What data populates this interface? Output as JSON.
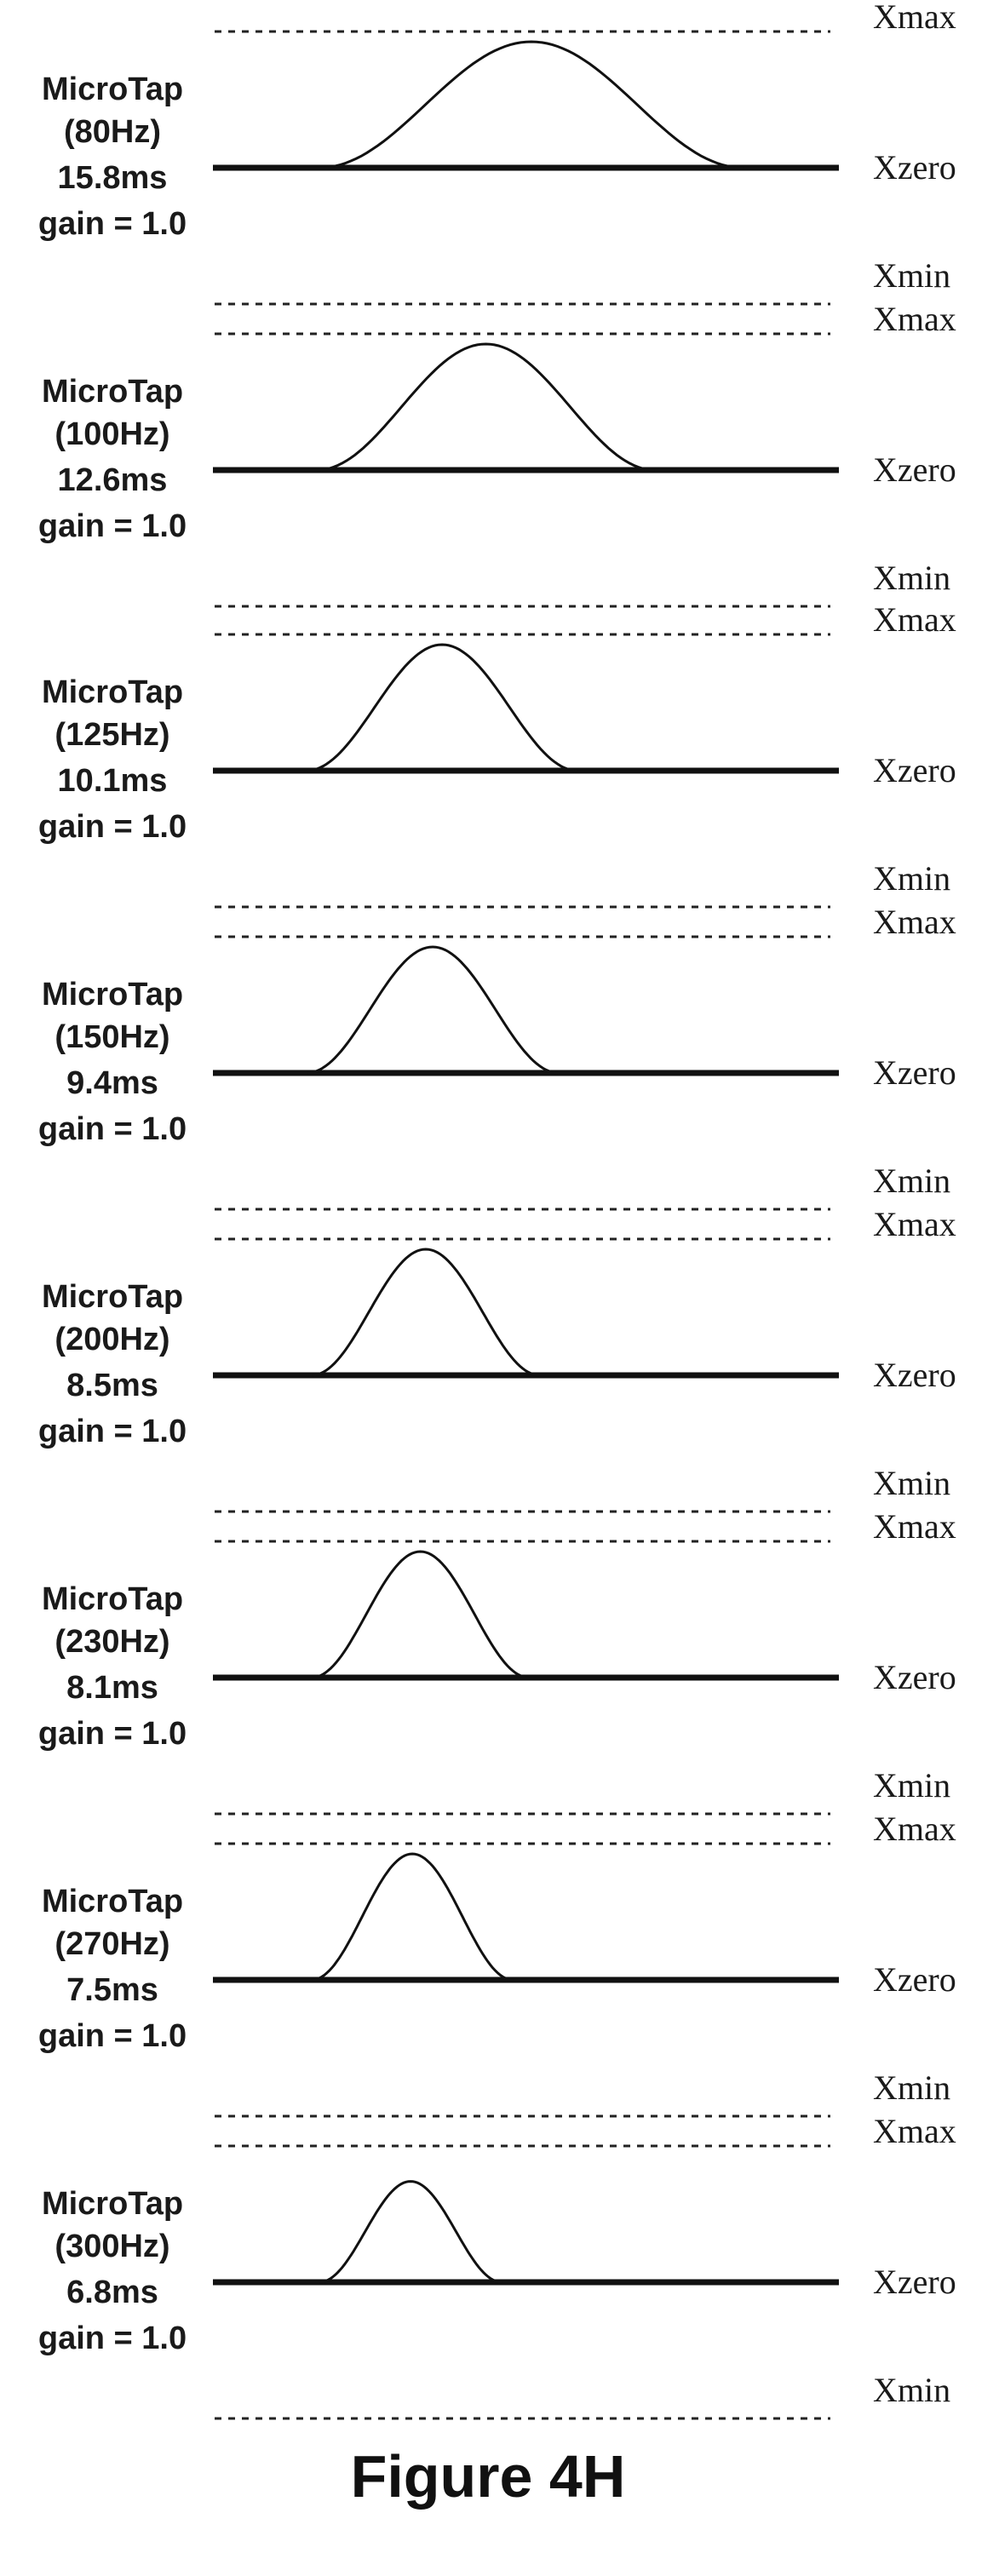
{
  "chart_data": {
    "type": "diagram",
    "caption": "Figure 4H",
    "level_labels": {
      "max": "Xmax",
      "zero": "Xzero",
      "min": "Xmin"
    },
    "taps": [
      {
        "name": "MicroTap",
        "frequency": "(80Hz)",
        "duration": "15.8ms",
        "gain": "gain = 1.0",
        "duration_ms": 15.8,
        "gain_value": 1.0,
        "peak_fraction": 1.0
      },
      {
        "name": "MicroTap",
        "frequency": "(100Hz)",
        "duration": "12.6ms",
        "gain": "gain = 1.0",
        "duration_ms": 12.6,
        "gain_value": 1.0,
        "peak_fraction": 1.0
      },
      {
        "name": "MicroTap",
        "frequency": "(125Hz)",
        "duration": "10.1ms",
        "gain": "gain = 1.0",
        "duration_ms": 10.1,
        "gain_value": 1.0,
        "peak_fraction": 1.0
      },
      {
        "name": "MicroTap",
        "frequency": "(150Hz)",
        "duration": "9.4ms",
        "gain": "gain = 1.0",
        "duration_ms": 9.4,
        "gain_value": 1.0,
        "peak_fraction": 1.0
      },
      {
        "name": "MicroTap",
        "frequency": "(200Hz)",
        "duration": "8.5ms",
        "gain": "gain = 1.0",
        "duration_ms": 8.5,
        "gain_value": 1.0,
        "peak_fraction": 1.0
      },
      {
        "name": "MicroTap",
        "frequency": "(230Hz)",
        "duration": "8.1ms",
        "gain": "gain = 1.0",
        "duration_ms": 8.1,
        "gain_value": 1.0,
        "peak_fraction": 1.0
      },
      {
        "name": "MicroTap",
        "frequency": "(270Hz)",
        "duration": "7.5ms",
        "gain": "gain = 1.0",
        "duration_ms": 7.5,
        "gain_value": 1.0,
        "peak_fraction": 1.0
      },
      {
        "name": "MicroTap",
        "frequency": "(300Hz)",
        "duration": "6.8ms",
        "gain": "gain = 1.0",
        "duration_ms": 6.8,
        "gain_value": 1.0,
        "peak_fraction": 0.8
      }
    ]
  }
}
